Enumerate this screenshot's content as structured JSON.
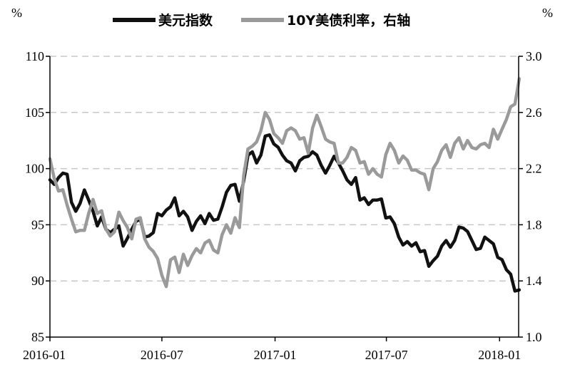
{
  "chart_data": {
    "type": "line",
    "title": "",
    "left_unit": "%",
    "right_unit": "%",
    "left_axis": {
      "ylim": [
        85,
        110
      ],
      "ticks": [
        85,
        90,
        95,
        100,
        105,
        110
      ],
      "tick_labels": [
        "85",
        "90",
        "95",
        "100",
        "105",
        "110"
      ]
    },
    "right_axis": {
      "ylim": [
        1.0,
        3.0
      ],
      "ticks": [
        1.0,
        1.4,
        1.8,
        2.2,
        2.6,
        3.0
      ],
      "tick_labels": [
        "1.0",
        "1.4",
        "1.8",
        "2.2",
        "2.6",
        "3.0"
      ]
    },
    "x_axis": {
      "start": "2016-01",
      "end": "2018-02",
      "tick_labels": [
        "2016-01",
        "2016-07",
        "2017-01",
        "2017-07",
        "2018-01"
      ]
    },
    "grid": "horizontal dashed",
    "legend_position": "top",
    "series": [
      {
        "name": "美元指数",
        "axis": "left",
        "color": "#111111",
        "points": [
          [
            "2016-01-01",
            99.0
          ],
          [
            "2016-01-08",
            98.6
          ],
          [
            "2016-01-15",
            99.2
          ],
          [
            "2016-01-22",
            99.6
          ],
          [
            "2016-01-29",
            99.5
          ],
          [
            "2016-02-05",
            97.0
          ],
          [
            "2016-02-12",
            96.2
          ],
          [
            "2016-02-19",
            96.9
          ],
          [
            "2016-02-26",
            98.1
          ],
          [
            "2016-03-04",
            97.2
          ],
          [
            "2016-03-11",
            96.2
          ],
          [
            "2016-03-18",
            94.9
          ],
          [
            "2016-03-25",
            95.7
          ],
          [
            "2016-04-01",
            94.6
          ],
          [
            "2016-04-08",
            94.3
          ],
          [
            "2016-04-15",
            94.6
          ],
          [
            "2016-04-22",
            94.9
          ],
          [
            "2016-04-29",
            93.1
          ],
          [
            "2016-05-06",
            93.8
          ],
          [
            "2016-05-13",
            94.6
          ],
          [
            "2016-05-20",
            95.3
          ],
          [
            "2016-05-27",
            95.5
          ],
          [
            "2016-06-03",
            93.9
          ],
          [
            "2016-06-10",
            94.0
          ],
          [
            "2016-06-17",
            94.3
          ],
          [
            "2016-06-24",
            96.0
          ],
          [
            "2016-07-01",
            95.8
          ],
          [
            "2016-07-08",
            96.3
          ],
          [
            "2016-07-15",
            96.6
          ],
          [
            "2016-07-22",
            97.4
          ],
          [
            "2016-07-29",
            95.8
          ],
          [
            "2016-08-05",
            96.2
          ],
          [
            "2016-08-12",
            95.7
          ],
          [
            "2016-08-19",
            94.5
          ],
          [
            "2016-08-26",
            95.3
          ],
          [
            "2016-09-02",
            95.8
          ],
          [
            "2016-09-09",
            95.1
          ],
          [
            "2016-09-16",
            96.0
          ],
          [
            "2016-09-23",
            95.4
          ],
          [
            "2016-09-30",
            95.5
          ],
          [
            "2016-10-07",
            96.6
          ],
          [
            "2016-10-14",
            97.9
          ],
          [
            "2016-10-21",
            98.5
          ],
          [
            "2016-10-28",
            98.6
          ],
          [
            "2016-11-04",
            97.1
          ],
          [
            "2016-11-11",
            98.9
          ],
          [
            "2016-11-18",
            101.2
          ],
          [
            "2016-11-25",
            101.5
          ],
          [
            "2016-12-02",
            100.5
          ],
          [
            "2016-12-09",
            101.2
          ],
          [
            "2016-12-16",
            102.9
          ],
          [
            "2016-12-23",
            103.0
          ],
          [
            "2016-12-30",
            102.2
          ],
          [
            "2017-01-06",
            101.9
          ],
          [
            "2017-01-13",
            101.2
          ],
          [
            "2017-01-20",
            100.7
          ],
          [
            "2017-01-27",
            100.5
          ],
          [
            "2017-02-03",
            99.8
          ],
          [
            "2017-02-10",
            100.7
          ],
          [
            "2017-02-17",
            101.0
          ],
          [
            "2017-02-24",
            101.1
          ],
          [
            "2017-03-03",
            101.5
          ],
          [
            "2017-03-10",
            101.2
          ],
          [
            "2017-03-17",
            100.3
          ],
          [
            "2017-03-24",
            99.6
          ],
          [
            "2017-03-31",
            100.3
          ],
          [
            "2017-04-07",
            101.1
          ],
          [
            "2017-04-14",
            100.5
          ],
          [
            "2017-04-21",
            99.8
          ],
          [
            "2017-04-28",
            99.0
          ],
          [
            "2017-05-05",
            98.6
          ],
          [
            "2017-05-12",
            99.2
          ],
          [
            "2017-05-19",
            97.2
          ],
          [
            "2017-05-26",
            97.4
          ],
          [
            "2017-06-02",
            96.8
          ],
          [
            "2017-06-09",
            97.2
          ],
          [
            "2017-06-16",
            97.2
          ],
          [
            "2017-06-23",
            97.3
          ],
          [
            "2017-06-30",
            95.6
          ],
          [
            "2017-07-07",
            95.7
          ],
          [
            "2017-07-14",
            95.1
          ],
          [
            "2017-07-21",
            93.9
          ],
          [
            "2017-07-28",
            93.2
          ],
          [
            "2017-08-04",
            93.5
          ],
          [
            "2017-08-11",
            93.1
          ],
          [
            "2017-08-18",
            93.4
          ],
          [
            "2017-08-25",
            92.6
          ],
          [
            "2017-09-01",
            92.7
          ],
          [
            "2017-09-08",
            91.3
          ],
          [
            "2017-09-15",
            91.8
          ],
          [
            "2017-09-22",
            92.2
          ],
          [
            "2017-09-29",
            93.1
          ],
          [
            "2017-10-06",
            93.6
          ],
          [
            "2017-10-13",
            93.0
          ],
          [
            "2017-10-20",
            93.6
          ],
          [
            "2017-10-27",
            94.8
          ],
          [
            "2017-11-03",
            94.7
          ],
          [
            "2017-11-10",
            94.4
          ],
          [
            "2017-11-17",
            93.6
          ],
          [
            "2017-11-24",
            92.8
          ],
          [
            "2017-12-01",
            92.9
          ],
          [
            "2017-12-08",
            93.9
          ],
          [
            "2017-12-15",
            93.6
          ],
          [
            "2017-12-22",
            93.3
          ],
          [
            "2017-12-29",
            92.1
          ],
          [
            "2018-01-05",
            91.9
          ],
          [
            "2018-01-12",
            91.0
          ],
          [
            "2018-01-19",
            90.6
          ],
          [
            "2018-01-26",
            89.1
          ],
          [
            "2018-02-02",
            89.2
          ]
        ]
      },
      {
        "name": "10Y美债利率，右轴",
        "axis": "right",
        "color": "#9a9a9a",
        "points": [
          [
            "2016-01-01",
            2.27
          ],
          [
            "2016-01-08",
            2.13
          ],
          [
            "2016-01-15",
            2.04
          ],
          [
            "2016-01-22",
            2.05
          ],
          [
            "2016-01-29",
            1.94
          ],
          [
            "2016-02-05",
            1.84
          ],
          [
            "2016-02-12",
            1.75
          ],
          [
            "2016-02-19",
            1.76
          ],
          [
            "2016-02-26",
            1.76
          ],
          [
            "2016-03-04",
            1.88
          ],
          [
            "2016-03-11",
            1.98
          ],
          [
            "2016-03-18",
            1.88
          ],
          [
            "2016-03-25",
            1.9
          ],
          [
            "2016-04-01",
            1.77
          ],
          [
            "2016-04-08",
            1.72
          ],
          [
            "2016-04-15",
            1.75
          ],
          [
            "2016-04-22",
            1.89
          ],
          [
            "2016-04-29",
            1.83
          ],
          [
            "2016-05-06",
            1.78
          ],
          [
            "2016-05-13",
            1.7
          ],
          [
            "2016-05-20",
            1.84
          ],
          [
            "2016-05-27",
            1.85
          ],
          [
            "2016-06-03",
            1.7
          ],
          [
            "2016-06-10",
            1.64
          ],
          [
            "2016-06-17",
            1.61
          ],
          [
            "2016-06-24",
            1.56
          ],
          [
            "2016-07-01",
            1.44
          ],
          [
            "2016-07-08",
            1.36
          ],
          [
            "2016-07-15",
            1.55
          ],
          [
            "2016-07-22",
            1.57
          ],
          [
            "2016-07-29",
            1.46
          ],
          [
            "2016-08-05",
            1.59
          ],
          [
            "2016-08-12",
            1.51
          ],
          [
            "2016-08-19",
            1.58
          ],
          [
            "2016-08-26",
            1.63
          ],
          [
            "2016-09-02",
            1.6
          ],
          [
            "2016-09-09",
            1.67
          ],
          [
            "2016-09-16",
            1.69
          ],
          [
            "2016-09-23",
            1.62
          ],
          [
            "2016-09-30",
            1.6
          ],
          [
            "2016-10-07",
            1.73
          ],
          [
            "2016-10-14",
            1.8
          ],
          [
            "2016-10-21",
            1.74
          ],
          [
            "2016-10-28",
            1.85
          ],
          [
            "2016-11-04",
            1.78
          ],
          [
            "2016-11-11",
            2.15
          ],
          [
            "2016-11-18",
            2.34
          ],
          [
            "2016-11-25",
            2.36
          ],
          [
            "2016-12-02",
            2.39
          ],
          [
            "2016-12-09",
            2.47
          ],
          [
            "2016-12-16",
            2.6
          ],
          [
            "2016-12-23",
            2.55
          ],
          [
            "2016-12-30",
            2.45
          ],
          [
            "2017-01-06",
            2.42
          ],
          [
            "2017-01-13",
            2.38
          ],
          [
            "2017-01-20",
            2.47
          ],
          [
            "2017-01-27",
            2.49
          ],
          [
            "2017-02-03",
            2.47
          ],
          [
            "2017-02-10",
            2.41
          ],
          [
            "2017-02-17",
            2.42
          ],
          [
            "2017-02-24",
            2.31
          ],
          [
            "2017-03-03",
            2.49
          ],
          [
            "2017-03-10",
            2.58
          ],
          [
            "2017-03-17",
            2.5
          ],
          [
            "2017-03-24",
            2.41
          ],
          [
            "2017-03-31",
            2.39
          ],
          [
            "2017-04-07",
            2.38
          ],
          [
            "2017-04-14",
            2.24
          ],
          [
            "2017-04-21",
            2.24
          ],
          [
            "2017-04-28",
            2.28
          ],
          [
            "2017-05-05",
            2.35
          ],
          [
            "2017-05-12",
            2.33
          ],
          [
            "2017-05-19",
            2.24
          ],
          [
            "2017-05-26",
            2.25
          ],
          [
            "2017-06-02",
            2.16
          ],
          [
            "2017-06-09",
            2.2
          ],
          [
            "2017-06-16",
            2.16
          ],
          [
            "2017-06-23",
            2.14
          ],
          [
            "2017-06-30",
            2.3
          ],
          [
            "2017-07-07",
            2.38
          ],
          [
            "2017-07-14",
            2.33
          ],
          [
            "2017-07-21",
            2.24
          ],
          [
            "2017-07-28",
            2.29
          ],
          [
            "2017-08-04",
            2.26
          ],
          [
            "2017-08-11",
            2.19
          ],
          [
            "2017-08-18",
            2.19
          ],
          [
            "2017-08-25",
            2.17
          ],
          [
            "2017-09-01",
            2.16
          ],
          [
            "2017-09-08",
            2.05
          ],
          [
            "2017-09-15",
            2.2
          ],
          [
            "2017-09-22",
            2.25
          ],
          [
            "2017-09-29",
            2.33
          ],
          [
            "2017-10-06",
            2.37
          ],
          [
            "2017-10-13",
            2.28
          ],
          [
            "2017-10-20",
            2.38
          ],
          [
            "2017-10-27",
            2.42
          ],
          [
            "2017-11-03",
            2.34
          ],
          [
            "2017-11-10",
            2.4
          ],
          [
            "2017-11-17",
            2.35
          ],
          [
            "2017-11-24",
            2.34
          ],
          [
            "2017-12-01",
            2.37
          ],
          [
            "2017-12-08",
            2.38
          ],
          [
            "2017-12-15",
            2.35
          ],
          [
            "2017-12-22",
            2.48
          ],
          [
            "2017-12-29",
            2.41
          ],
          [
            "2018-01-05",
            2.48
          ],
          [
            "2018-01-12",
            2.55
          ],
          [
            "2018-01-19",
            2.64
          ],
          [
            "2018-01-26",
            2.66
          ],
          [
            "2018-02-02",
            2.84
          ]
        ]
      }
    ]
  }
}
